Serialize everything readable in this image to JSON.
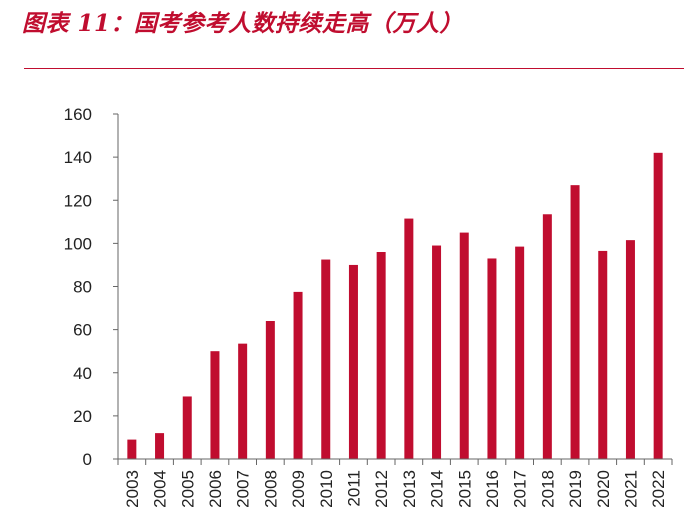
{
  "title": "图表 11：国考参考人数持续走高（万人）",
  "colors": {
    "bar": "#c00d2f",
    "rule": "#c00d2f",
    "axis": "#666666",
    "text": "#222222"
  },
  "chart_data": {
    "type": "bar",
    "categories": [
      "2003",
      "2004",
      "2005",
      "2006",
      "2007",
      "2008",
      "2009",
      "2010",
      "2011",
      "2012",
      "2013",
      "2014",
      "2015",
      "2016",
      "2017",
      "2018",
      "2019",
      "2020",
      "2021",
      "2022"
    ],
    "values": [
      9,
      12,
      29,
      50,
      53.5,
      64,
      77.5,
      92.5,
      90,
      96,
      111.5,
      99,
      105,
      93,
      98.5,
      113.5,
      127,
      96.5,
      101.5,
      142
    ],
    "ylim": [
      0,
      160
    ],
    "yticks": [
      0,
      20,
      40,
      60,
      80,
      100,
      120,
      140,
      160
    ],
    "title": "",
    "xlabel": "",
    "ylabel": "",
    "grid": false,
    "legend": "none"
  }
}
